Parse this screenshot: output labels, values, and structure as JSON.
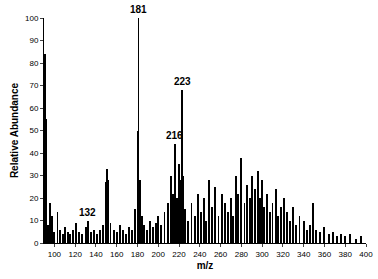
{
  "chart_data": {
    "type": "bar",
    "x_label": "m/z",
    "y_label": "Relative Abundance",
    "x": [
      91,
      92,
      94,
      96,
      98,
      100,
      103,
      105,
      108,
      110,
      113,
      115,
      118,
      121,
      124,
      127,
      130,
      132,
      135,
      138,
      141,
      144,
      147,
      150,
      151,
      152,
      154,
      157,
      160,
      163,
      166,
      169,
      172,
      175,
      178,
      180,
      181,
      182,
      184,
      186,
      189,
      192,
      195,
      198,
      200,
      203,
      206,
      209,
      212,
      214,
      216,
      218,
      220,
      221,
      223,
      224,
      226,
      229,
      232,
      235,
      238,
      241,
      244,
      246,
      249,
      252,
      255,
      258,
      261,
      264,
      267,
      270,
      272,
      275,
      277,
      280,
      283,
      285,
      288,
      290,
      293,
      296,
      298,
      300,
      302,
      305,
      308,
      310,
      313,
      315,
      318,
      321,
      324,
      327,
      330,
      333,
      336,
      340,
      343,
      346,
      349,
      352,
      356,
      360,
      364,
      368,
      372,
      376,
      380,
      385,
      390,
      395
    ],
    "values": [
      84,
      55,
      8,
      18,
      12,
      5,
      14,
      6,
      4,
      7,
      5,
      4,
      6,
      9,
      5,
      4,
      7,
      10,
      5,
      6,
      4,
      6,
      8,
      27,
      33,
      28,
      9,
      6,
      5,
      8,
      6,
      4,
      7,
      6,
      15,
      50,
      100,
      28,
      12,
      8,
      6,
      10,
      7,
      9,
      12,
      8,
      14,
      18,
      30,
      22,
      44,
      20,
      35,
      28,
      68,
      30,
      15,
      10,
      18,
      12,
      22,
      14,
      20,
      10,
      28,
      16,
      25,
      12,
      22,
      18,
      14,
      20,
      12,
      30,
      22,
      38,
      18,
      26,
      20,
      30,
      24,
      32,
      20,
      28,
      16,
      22,
      14,
      18,
      24,
      12,
      16,
      20,
      14,
      10,
      16,
      8,
      12,
      10,
      6,
      8,
      18,
      6,
      5,
      7,
      4,
      5,
      3,
      4,
      3,
      4,
      2,
      3
    ],
    "color": "#000000",
    "xlim": [
      90,
      400
    ],
    "xticks": [
      100,
      120,
      140,
      160,
      180,
      200,
      220,
      240,
      260,
      280,
      300,
      320,
      340,
      360,
      380,
      400
    ],
    "ylim": [
      0,
      100
    ],
    "yticks": [
      0,
      10,
      20,
      30,
      40,
      50,
      60,
      70,
      80,
      90,
      100
    ],
    "grid": false,
    "annotations": [
      {
        "text": "181",
        "x": 181,
        "y": 100
      },
      {
        "text": "223",
        "x": 223,
        "y": 68
      },
      {
        "text": "216",
        "x": 216,
        "y": 44
      },
      {
        "text": "132",
        "x": 132,
        "y": 10
      }
    ]
  }
}
